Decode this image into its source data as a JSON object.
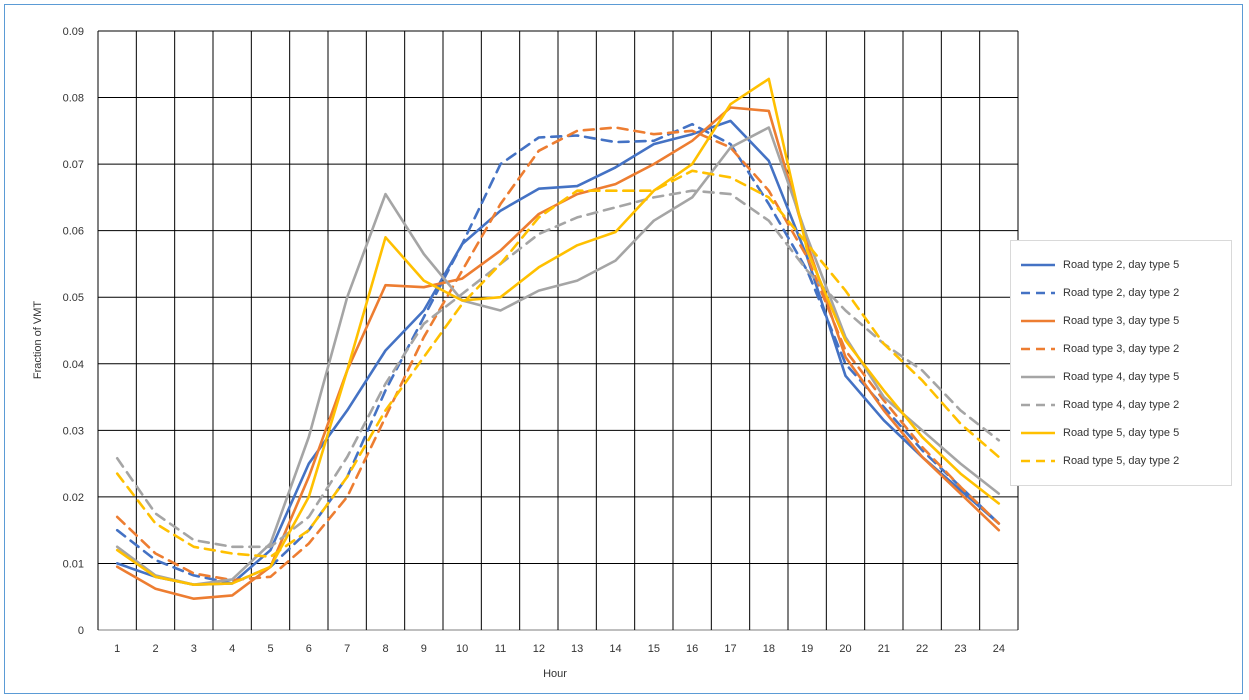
{
  "chart_data": {
    "type": "line",
    "xlabel": "Hour",
    "ylabel": "Fraction of VMT",
    "ylim": [
      0,
      0.09
    ],
    "yticks": [
      "0",
      "0.01",
      "0.02",
      "0.03",
      "0.04",
      "0.05",
      "0.06",
      "0.07",
      "0.08",
      "0.09"
    ],
    "x": [
      1,
      2,
      3,
      4,
      5,
      6,
      7,
      8,
      9,
      10,
      11,
      12,
      13,
      14,
      15,
      16,
      17,
      18,
      19,
      20,
      21,
      22,
      23,
      24
    ],
    "grid": true,
    "legend_position": "right",
    "series": [
      {
        "name": "Road type 2, day type 5",
        "color": "#4472c4",
        "dash": "solid",
        "values": [
          0.01,
          0.008,
          0.0068,
          0.007,
          0.012,
          0.025,
          0.033,
          0.042,
          0.048,
          0.058,
          0.063,
          0.0663,
          0.0667,
          0.0695,
          0.073,
          0.0745,
          0.0765,
          0.0705,
          0.056,
          0.0382,
          0.0315,
          0.026,
          0.021,
          0.016
        ]
      },
      {
        "name": "Road type 2, day type 2",
        "color": "#4472c4",
        "dash": "dashed",
        "values": [
          0.015,
          0.0105,
          0.0082,
          0.007,
          0.0095,
          0.015,
          0.023,
          0.036,
          0.047,
          0.058,
          0.07,
          0.074,
          0.0743,
          0.0733,
          0.0735,
          0.076,
          0.073,
          0.064,
          0.054,
          0.04,
          0.0335,
          0.027,
          0.0215,
          0.016
        ]
      },
      {
        "name": "Road type 3, day type 5",
        "color": "#ed7d31",
        "dash": "solid",
        "values": [
          0.0095,
          0.0062,
          0.0047,
          0.0052,
          0.0095,
          0.023,
          0.039,
          0.0518,
          0.0515,
          0.0528,
          0.057,
          0.0625,
          0.0655,
          0.067,
          0.07,
          0.0735,
          0.0785,
          0.078,
          0.058,
          0.041,
          0.033,
          0.026,
          0.0205,
          0.015
        ]
      },
      {
        "name": "Road type 3, day type 2",
        "color": "#ed7d31",
        "dash": "dashed",
        "values": [
          0.017,
          0.0115,
          0.0085,
          0.0075,
          0.008,
          0.013,
          0.02,
          0.032,
          0.044,
          0.054,
          0.064,
          0.072,
          0.075,
          0.0755,
          0.0745,
          0.075,
          0.0725,
          0.066,
          0.056,
          0.042,
          0.0345,
          0.0275,
          0.0215,
          0.016
        ]
      },
      {
        "name": "Road type 4, day type 5",
        "color": "#a5a5a5",
        "dash": "solid",
        "values": [
          0.0125,
          0.0082,
          0.0068,
          0.0076,
          0.013,
          0.029,
          0.05,
          0.0655,
          0.0565,
          0.0495,
          0.048,
          0.051,
          0.0525,
          0.0555,
          0.0615,
          0.065,
          0.0725,
          0.0755,
          0.059,
          0.044,
          0.035,
          0.03,
          0.025,
          0.0205
        ]
      },
      {
        "name": "Road type 4, day type 2",
        "color": "#a5a5a5",
        "dash": "dashed",
        "values": [
          0.0258,
          0.0175,
          0.0135,
          0.0125,
          0.0125,
          0.017,
          0.026,
          0.037,
          0.046,
          0.0505,
          0.055,
          0.0595,
          0.062,
          0.0635,
          0.065,
          0.066,
          0.0655,
          0.0615,
          0.054,
          0.048,
          0.043,
          0.039,
          0.033,
          0.0285
        ]
      },
      {
        "name": "Road type 5, day type 5",
        "color": "#ffc000",
        "dash": "solid",
        "values": [
          0.012,
          0.008,
          0.0068,
          0.007,
          0.0095,
          0.02,
          0.039,
          0.059,
          0.0525,
          0.0495,
          0.05,
          0.0545,
          0.0578,
          0.0598,
          0.066,
          0.07,
          0.079,
          0.0828,
          0.057,
          0.0435,
          0.036,
          0.029,
          0.0235,
          0.019
        ]
      },
      {
        "name": "Road type 5, day type 2",
        "color": "#ffc000",
        "dash": "dashed",
        "values": [
          0.0235,
          0.016,
          0.0125,
          0.0115,
          0.011,
          0.015,
          0.023,
          0.033,
          0.041,
          0.049,
          0.055,
          0.062,
          0.066,
          0.066,
          0.066,
          0.069,
          0.068,
          0.065,
          0.058,
          0.051,
          0.043,
          0.0375,
          0.031,
          0.026
        ]
      }
    ]
  }
}
